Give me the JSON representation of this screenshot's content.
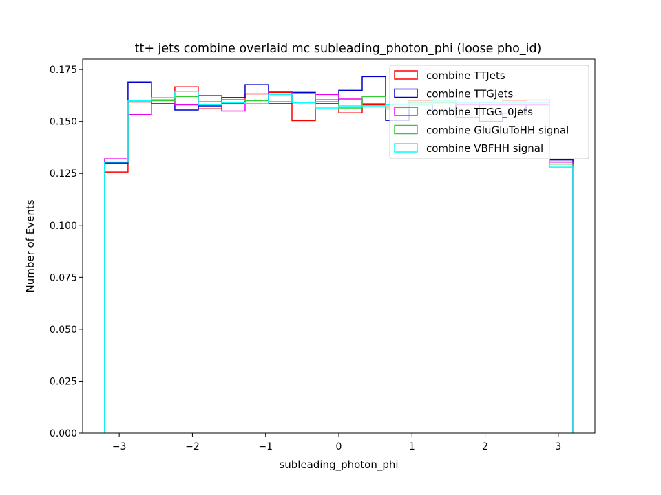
{
  "chart_data": {
    "type": "histogram-step",
    "title": "tt+ jets combine overlaid mc subleading_photon_phi (loose pho_id)",
    "xlabel": "subleading_photon_phi",
    "ylabel": "Number of Events",
    "xlim": [
      -3.5,
      3.5
    ],
    "ylim": [
      0.0,
      0.18
    ],
    "xticks": [
      -3,
      -2,
      -1,
      0,
      1,
      2,
      3
    ],
    "xtick_labels": [
      "−3",
      "−2",
      "−1",
      "0",
      "1",
      "2",
      "3"
    ],
    "yticks": [
      0.0,
      0.025,
      0.05,
      0.075,
      0.1,
      0.125,
      0.15,
      0.175
    ],
    "ytick_labels": [
      "0.000",
      "0.025",
      "0.050",
      "0.075",
      "0.100",
      "0.125",
      "0.150",
      "0.175"
    ],
    "bin_edges": [
      -3.2,
      -2.88,
      -2.56,
      -2.24,
      -1.92,
      -1.6,
      -1.28,
      -0.96,
      -0.64,
      -0.32,
      0.0,
      0.32,
      0.64,
      0.96,
      1.28,
      1.6,
      1.92,
      2.24,
      2.56,
      2.88,
      3.2
    ],
    "legend_position": "upper right",
    "series": [
      {
        "name": "combine TTJets",
        "color": "#ff0000",
        "values": [
          0.1257,
          0.1593,
          0.1603,
          0.1667,
          0.1561,
          0.1587,
          0.1633,
          0.164,
          0.1504,
          0.1604,
          0.1541,
          0.158,
          0.157,
          0.16,
          0.16,
          0.152,
          0.158,
          0.16,
          0.1603,
          0.1305
        ]
      },
      {
        "name": "combine TTGJets",
        "color": "#0000cc",
        "values": [
          0.13,
          0.169,
          0.1585,
          0.1555,
          0.1575,
          0.1615,
          0.1677,
          0.1585,
          0.164,
          0.1585,
          0.165,
          0.1716,
          0.1505,
          0.158,
          0.155,
          0.159,
          0.15,
          0.154,
          0.158,
          0.1315
        ]
      },
      {
        "name": "combine TTGG_0Jets",
        "color": "#ee00ee",
        "values": [
          0.132,
          0.1533,
          0.1603,
          0.158,
          0.1625,
          0.155,
          0.1585,
          0.1645,
          0.159,
          0.163,
          0.1608,
          0.1585,
          0.158,
          0.159,
          0.159,
          0.158,
          0.158,
          0.158,
          0.158,
          0.1305
        ]
      },
      {
        "name": "combine GluGluToHH signal",
        "color": "#33cc33",
        "values": [
          0.1305,
          0.16,
          0.16,
          0.162,
          0.1595,
          0.1605,
          0.16,
          0.1595,
          0.1635,
          0.1595,
          0.1565,
          0.162,
          0.156,
          0.159,
          0.159,
          0.159,
          0.159,
          0.159,
          0.159,
          0.1295
        ]
      },
      {
        "name": "combine VBFHH signal",
        "color": "#00ffff",
        "values": [
          0.1305,
          0.16,
          0.1615,
          0.1645,
          0.158,
          0.159,
          0.1585,
          0.163,
          0.159,
          0.1565,
          0.1575,
          0.1575,
          0.158,
          0.158,
          0.16,
          0.159,
          0.159,
          0.159,
          0.159,
          0.128
        ]
      }
    ]
  }
}
